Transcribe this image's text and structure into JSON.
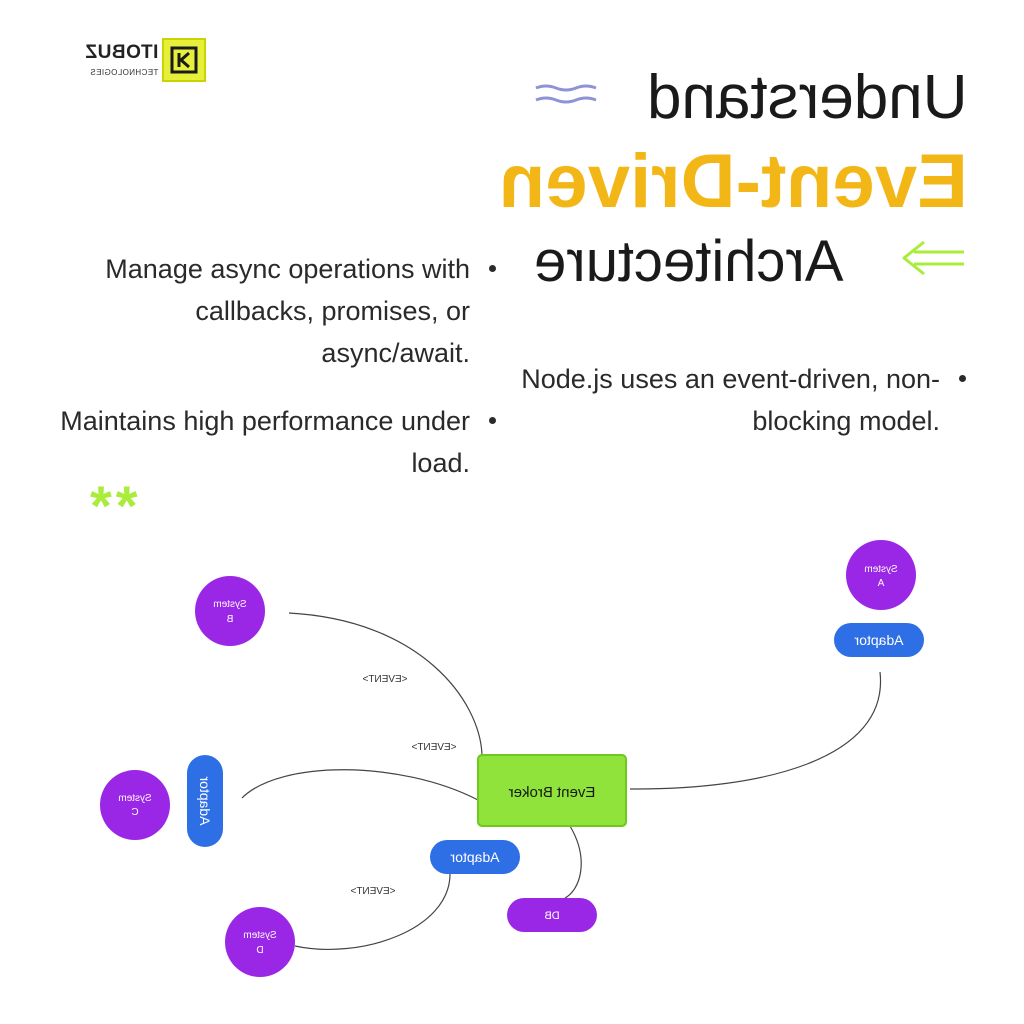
{
  "brand": {
    "name": "ITOBUZ",
    "subtitle": "TECHNOLOGIES"
  },
  "heading": {
    "line1": "Understand",
    "line2": "Event-Driven",
    "line3": "Architecture"
  },
  "bullets": [
    {
      "text": "Manage async operations with callbacks, promises, or async/await."
    },
    {
      "text": "Node.js uses an event-driven, non-blocking model."
    },
    {
      "text": "Maintains high performance under load."
    }
  ],
  "decorations": {
    "stars": "**"
  },
  "diagram": {
    "broker": "Event Broker",
    "nodes": {
      "system_a": [
        "System",
        "A"
      ],
      "system_b": [
        "System",
        "B"
      ],
      "system_c": [
        "System",
        "C"
      ],
      "system_d": [
        "System",
        "D"
      ],
      "adaptor_a": "Adaptor",
      "adaptor_c": "Adaptor",
      "adaptor_d": "Adaptor",
      "db": "DB"
    },
    "edge_label": "<EVENT>"
  },
  "colors": {
    "yellow": "#f2b617",
    "green": "#8fe33a",
    "purple": "#9b27e6",
    "blue": "#2e6fe6",
    "lavender": "#8e93d8",
    "lime": "#a9ec3a"
  }
}
